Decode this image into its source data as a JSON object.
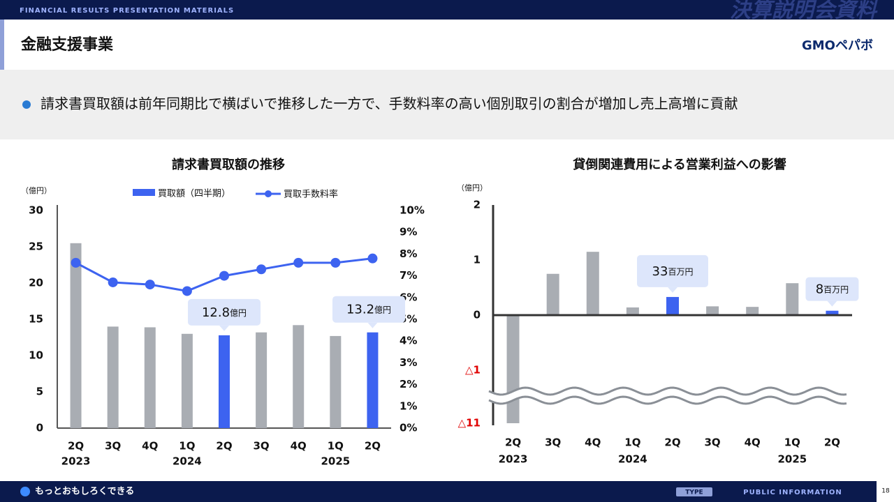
{
  "header": {
    "banner": "FINANCIAL RESULTS PRESENTATION MATERIALS",
    "banner_title": "決算説明会資料",
    "title": "金融支援事業",
    "logo": "GMOペパボ"
  },
  "summary": "請求書買取額は前年同期比で横ばいで推移した一方で、手数料率の高い個別取引の割合が増加し売上高増に貢献",
  "chart_data": [
    {
      "type": "bar_line",
      "title": "請求書買取額の推移",
      "y_label": "（億円）",
      "categories": [
        "2Q",
        "3Q",
        "4Q",
        "1Q",
        "2Q",
        "3Q",
        "4Q",
        "1Q",
        "2Q"
      ],
      "years": [
        "2023",
        null,
        null,
        "2024",
        null,
        null,
        null,
        "2025",
        null
      ],
      "ylim": [
        0,
        30
      ],
      "yticks": [
        0,
        5,
        10,
        15,
        20,
        25,
        30
      ],
      "y2lim": [
        0,
        10
      ],
      "y2ticks": [
        {
          "value": 0,
          "label": "0%"
        },
        {
          "value": 1,
          "label": "1%"
        },
        {
          "value": 2,
          "label": "2%"
        },
        {
          "value": 3,
          "label": "3%"
        },
        {
          "value": 4,
          "label": "4%"
        },
        {
          "value": 5,
          "label": "5%"
        },
        {
          "value": 6,
          "label": "6%"
        },
        {
          "value": 7,
          "label": "7%"
        },
        {
          "value": 8,
          "label": "8%"
        },
        {
          "value": 9,
          "label": "9%"
        },
        {
          "value": 10,
          "label": "10%"
        }
      ],
      "series": [
        {
          "name": "買取額（四半期）",
          "color": "#3d63f0",
          "colors": [
            "#a9adb3",
            "#a9adb3",
            "#a9adb3",
            "#a9adb3",
            "#3d63f0",
            "#a9adb3",
            "#a9adb3",
            "#a9adb3",
            "#3d63f0"
          ],
          "values": [
            25.5,
            14.0,
            13.9,
            13.0,
            12.8,
            13.2,
            14.2,
            12.7,
            13.2
          ],
          "value_labels": [
            null,
            null,
            null,
            null,
            "12.8",
            null,
            null,
            null,
            "13.2"
          ],
          "value_label_unit": "億円"
        },
        {
          "name": "買取手数料率",
          "color": "#3d63f0",
          "axis": "y2",
          "values": [
            7.6,
            6.7,
            6.6,
            6.3,
            7.0,
            7.3,
            7.6,
            7.6,
            7.8
          ]
        }
      ]
    },
    {
      "type": "bar",
      "title": "貸倒関連費用による営業利益への影響",
      "y_label": "（億円）",
      "categories": [
        "2Q",
        "3Q",
        "4Q",
        "1Q",
        "2Q",
        "3Q",
        "4Q",
        "1Q",
        "2Q"
      ],
      "years": [
        "2023",
        null,
        null,
        "2024",
        null,
        null,
        null,
        "2025",
        null
      ],
      "ylim": [
        -11,
        2
      ],
      "yticks": [
        2,
        1,
        0,
        {
          "value": -1,
          "label": "△1"
        },
        {
          "value": -11,
          "label": "△11"
        }
      ],
      "colors": [
        "#a9adb3",
        "#a9adb3",
        "#a9adb3",
        "#a9adb3",
        "#3d63f0",
        "#a9adb3",
        "#a9adb3",
        "#a9adb3",
        "#3d63f0"
      ],
      "values": [
        -11,
        0.75,
        1.15,
        0.14,
        0.33,
        0.16,
        0.15,
        0.58,
        0.08
      ],
      "value_labels": [
        null,
        null,
        null,
        null,
        "33",
        null,
        null,
        null,
        "8"
      ],
      "value_label_unit": "百万円"
    }
  ],
  "footer": {
    "tagline": "もっとおもしろくできる",
    "type_label": "TYPE",
    "type": "PUBLIC INFORMATION",
    "page": "18"
  }
}
